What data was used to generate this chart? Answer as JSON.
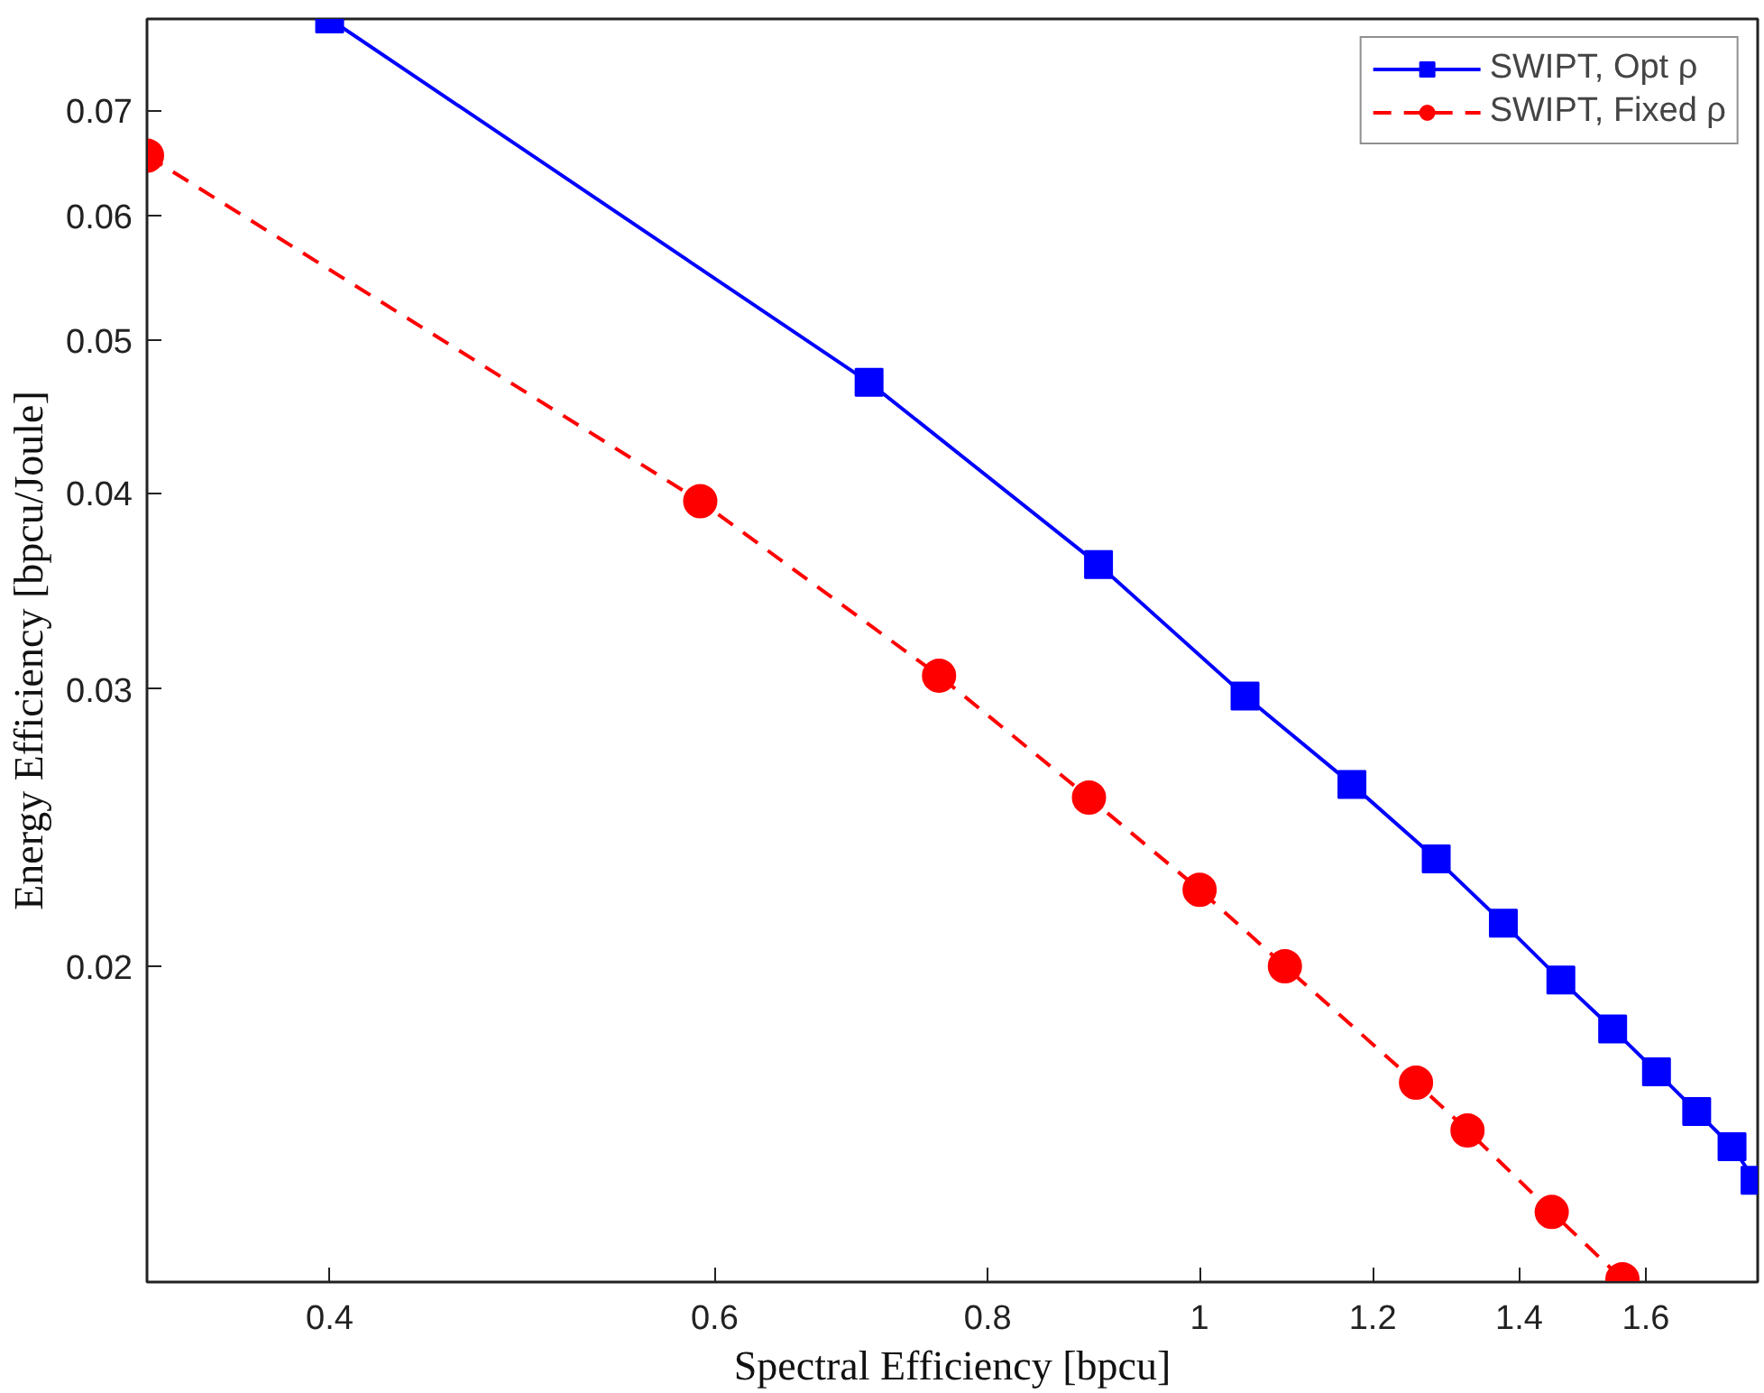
{
  "chart_data": {
    "type": "line",
    "xlabel": "Spectral Efficiency [bpcu]",
    "ylabel": "Energy Efficiency [bpcu/Joule]",
    "log": "xy",
    "legend": "top right",
    "xlim": [
      0.33,
      1.8
    ],
    "ylim": [
      0.0126,
      0.08
    ],
    "xticks": [
      0.4,
      0.6,
      0.8,
      1,
      1.2,
      1.4,
      1.6
    ],
    "yticks": [
      0.02,
      0.03,
      0.04,
      0.05,
      0.06,
      0.07
    ],
    "series": [
      {
        "name": "SWIPT, Opt ρ",
        "color": "#0000ff",
        "marker": "square",
        "line_style": "solid",
        "x": [
          0.4,
          0.706,
          0.899,
          1.049,
          1.174,
          1.283,
          1.377,
          1.463,
          1.545,
          1.618,
          1.688,
          1.752,
          1.795
        ],
        "values": [
          0.08,
          0.047,
          0.036,
          0.0297,
          0.0261,
          0.0234,
          0.0213,
          0.0196,
          0.01825,
          0.01714,
          0.01617,
          0.01536,
          0.01462
        ]
      },
      {
        "name": "SWIPT, Fixed ρ",
        "color": "#ff0000",
        "marker": "circle",
        "line_style": "dashed",
        "x": [
          0.33,
          0.591,
          0.76,
          0.89,
          1.0,
          1.094,
          1.256,
          1.326,
          1.449,
          1.561
        ],
        "values": [
          0.0655,
          0.0395,
          0.0306,
          0.0256,
          0.02237,
          0.02,
          0.01687,
          0.01573,
          0.01396,
          0.01265
        ]
      }
    ]
  }
}
